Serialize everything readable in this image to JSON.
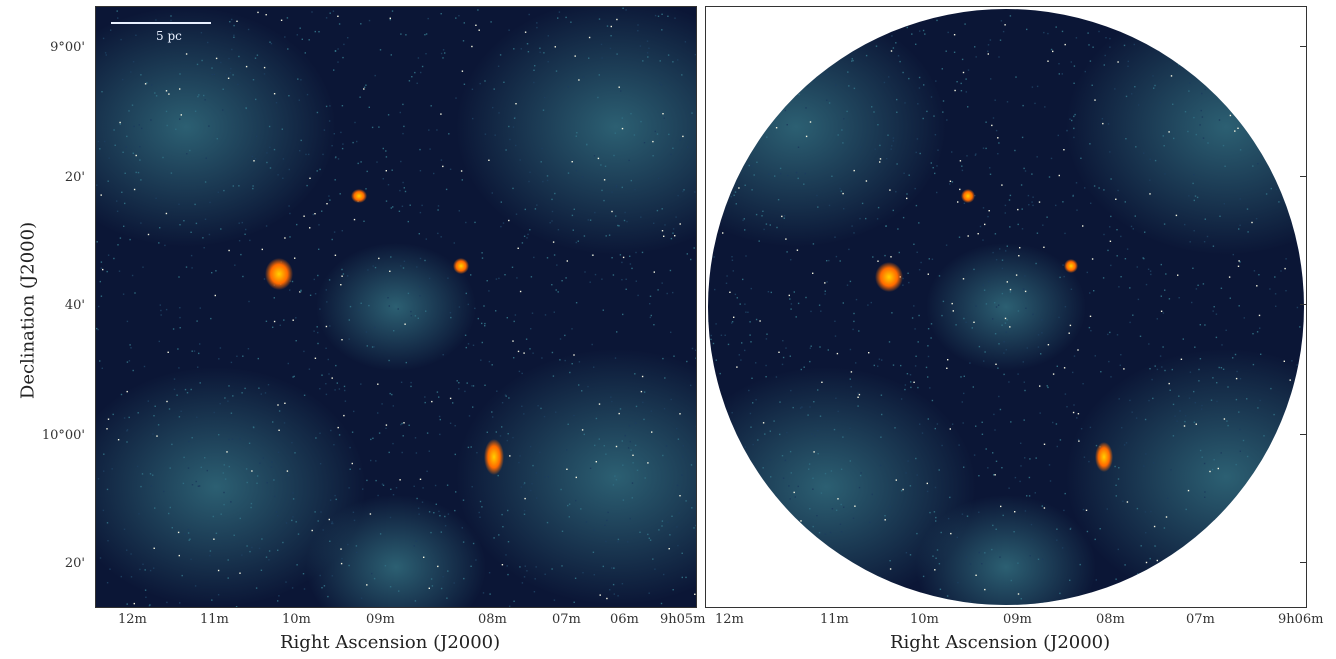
{
  "left_panel": {
    "scale_bar_label": "5 pc",
    "x_ticks": [
      "12m",
      "11m",
      "10m",
      "09m",
      "08m",
      "07m",
      "06m",
      "9h05m"
    ],
    "y_ticks": [
      "9°00'",
      "20'",
      "40'",
      "10°00'",
      "20'"
    ],
    "xlabel": "Right Ascension (J2000)",
    "ylabel": "Declination (J2000)"
  },
  "right_panel": {
    "x_ticks": [
      "12m",
      "11m",
      "10m",
      "09m",
      "08m",
      "07m",
      "9h06m"
    ],
    "xlabel": "Right Ascension (J2000)"
  },
  "colors": {
    "background_dark": "#0b1636",
    "diffuse_teal": "#3a7f8c",
    "hot_source": "#ff6a00",
    "hot_core": "#ffd000",
    "star_speck": "#f5f5e0"
  }
}
